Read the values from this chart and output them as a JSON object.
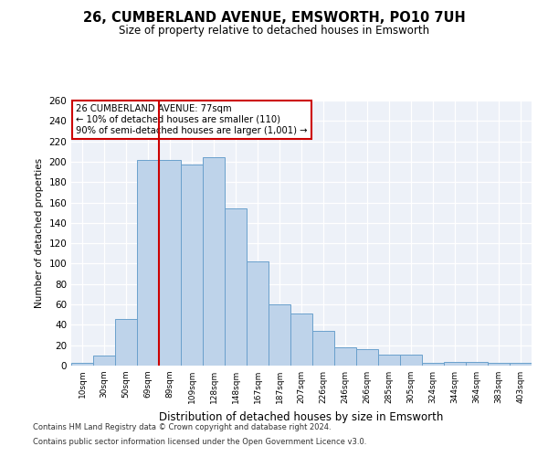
{
  "title1": "26, CUMBERLAND AVENUE, EMSWORTH, PO10 7UH",
  "title2": "Size of property relative to detached houses in Emsworth",
  "xlabel": "Distribution of detached houses by size in Emsworth",
  "ylabel": "Number of detached properties",
  "categories": [
    "10sqm",
    "30sqm",
    "50sqm",
    "69sqm",
    "89sqm",
    "109sqm",
    "128sqm",
    "148sqm",
    "167sqm",
    "187sqm",
    "207sqm",
    "226sqm",
    "246sqm",
    "266sqm",
    "285sqm",
    "305sqm",
    "324sqm",
    "344sqm",
    "364sqm",
    "383sqm",
    "403sqm"
  ],
  "values": [
    3,
    10,
    46,
    202,
    202,
    197,
    204,
    154,
    102,
    60,
    51,
    34,
    18,
    16,
    11,
    11,
    3,
    4,
    4,
    3,
    3
  ],
  "bar_color": "#bed3ea",
  "bar_edge_color": "#6aa0cc",
  "vline_x": 3.5,
  "vline_color": "#cc0000",
  "annotation_text": "26 CUMBERLAND AVENUE: 77sqm\n← 10% of detached houses are smaller (110)\n90% of semi-detached houses are larger (1,001) →",
  "annotation_box_color": "#ffffff",
  "annotation_box_edge": "#cc0000",
  "ylim": [
    0,
    260
  ],
  "yticks": [
    0,
    20,
    40,
    60,
    80,
    100,
    120,
    140,
    160,
    180,
    200,
    220,
    240,
    260
  ],
  "bg_color": "#edf1f8",
  "footnote1": "Contains HM Land Registry data © Crown copyright and database right 2024.",
  "footnote2": "Contains public sector information licensed under the Open Government Licence v3.0."
}
